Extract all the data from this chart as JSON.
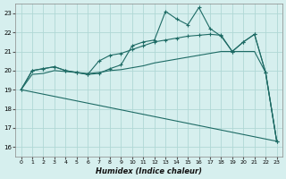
{
  "xlabel": "Humidex (Indice chaleur)",
  "background_color": "#d6efee",
  "grid_color": "#b0d8d5",
  "line_color": "#1e6b65",
  "xlim": [
    -0.5,
    23.5
  ],
  "ylim": [
    15.5,
    23.5
  ],
  "xticks": [
    0,
    1,
    2,
    3,
    4,
    5,
    6,
    7,
    8,
    9,
    10,
    11,
    12,
    13,
    14,
    15,
    16,
    17,
    18,
    19,
    20,
    21,
    22,
    23
  ],
  "yticks": [
    16,
    17,
    18,
    19,
    20,
    21,
    22,
    23
  ],
  "series1_x": [
    0,
    1,
    2,
    3,
    4,
    5,
    6,
    7,
    8,
    9,
    10,
    11,
    12,
    13,
    14,
    15,
    16,
    17,
    18,
    19,
    20,
    21,
    22,
    23
  ],
  "series1_y": [
    19.0,
    20.0,
    20.1,
    20.2,
    20.0,
    19.9,
    19.8,
    19.85,
    20.1,
    20.3,
    21.3,
    21.5,
    21.6,
    23.1,
    22.7,
    22.4,
    23.3,
    22.2,
    21.8,
    21.0,
    21.5,
    21.9,
    19.9,
    16.3
  ],
  "series2_x": [
    0,
    1,
    2,
    3,
    4,
    5,
    6,
    7,
    8,
    9,
    10,
    11,
    12,
    13,
    14,
    15,
    16,
    17,
    18,
    19,
    20,
    21,
    22,
    23
  ],
  "series2_y": [
    19.0,
    20.0,
    20.1,
    20.2,
    20.0,
    19.9,
    19.8,
    20.5,
    20.8,
    20.9,
    21.1,
    21.3,
    21.5,
    21.6,
    21.7,
    21.8,
    21.85,
    21.9,
    21.85,
    21.0,
    21.5,
    21.9,
    19.9,
    16.3
  ],
  "series3_x": [
    0,
    1,
    2,
    3,
    4,
    5,
    6,
    7,
    8,
    9,
    10,
    11,
    12,
    13,
    14,
    15,
    16,
    17,
    18,
    19,
    20,
    21,
    22,
    23
  ],
  "series3_y": [
    19.0,
    19.8,
    19.85,
    20.0,
    19.95,
    19.9,
    19.85,
    19.9,
    20.0,
    20.05,
    20.15,
    20.25,
    20.4,
    20.5,
    20.6,
    20.7,
    20.8,
    20.9,
    21.0,
    21.0,
    21.0,
    21.0,
    19.9,
    16.3
  ],
  "series4_x": [
    0,
    23
  ],
  "series4_y": [
    19.0,
    16.3
  ]
}
